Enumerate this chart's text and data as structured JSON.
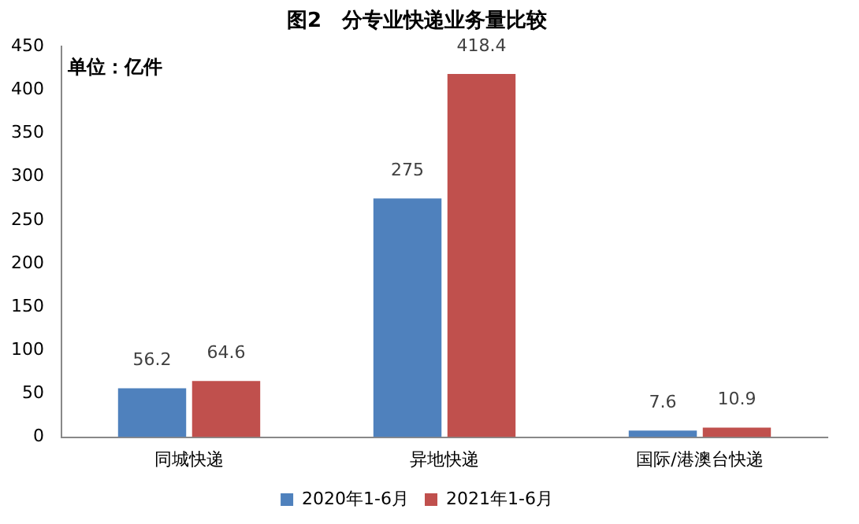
{
  "chart_data": {
    "type": "bar",
    "title": "图2　分专业快递业务量比较",
    "annotations": [
      "单位：亿件"
    ],
    "categories": [
      "同城快递",
      "异地快递",
      "国际/港澳台快递"
    ],
    "series": [
      {
        "name": "2020年1-6月",
        "color": "#4f81bd",
        "values": [
          56.2,
          275,
          7.6
        ]
      },
      {
        "name": "2021年1-6月",
        "color": "#c0504d",
        "values": [
          64.6,
          418.4,
          10.9
        ]
      }
    ],
    "ylim": [
      0,
      450
    ],
    "yticks": [
      0,
      50,
      100,
      150,
      200,
      250,
      300,
      350,
      400,
      450
    ],
    "grid": false,
    "legend": "bottom",
    "data_labels": true
  }
}
